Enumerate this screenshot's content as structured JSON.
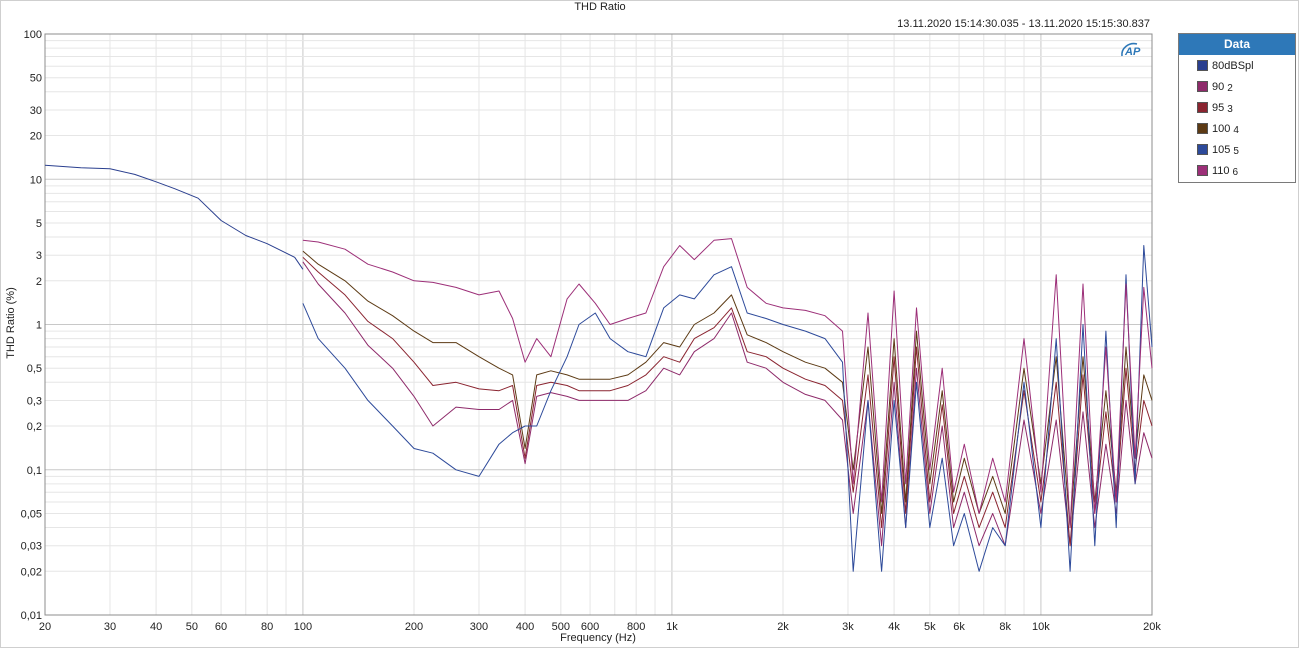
{
  "chart_data": {
    "type": "line",
    "title": "THD Ratio",
    "timestamp": "13.11.2020 15:14:30.035 - 13.11.2020 15:15:30.837",
    "xlabel": "Frequency (Hz)",
    "ylabel": "THD Ratio (%)",
    "x_scale": "log",
    "y_scale": "log",
    "xlim": [
      20,
      20000
    ],
    "ylim": [
      0.01,
      100
    ],
    "x_ticks": [
      20,
      30,
      40,
      50,
      60,
      80,
      100,
      200,
      300,
      400,
      500,
      600,
      800,
      1000,
      2000,
      3000,
      4000,
      5000,
      6000,
      8000,
      10000,
      20000
    ],
    "x_tick_labels": [
      "20",
      "30",
      "40",
      "50",
      "60",
      "80",
      "100",
      "200",
      "300",
      "400",
      "500",
      "600",
      "800",
      "1k",
      "2k",
      "3k",
      "4k",
      "5k",
      "6k",
      "8k",
      "10k",
      "20k"
    ],
    "y_ticks": [
      0.01,
      0.02,
      0.03,
      0.05,
      0.1,
      0.2,
      0.3,
      0.5,
      1,
      2,
      3,
      5,
      10,
      20,
      30,
      50,
      100
    ],
    "y_tick_labels": [
      "0,01",
      "0,02",
      "0,03",
      "0,05",
      "0,1",
      "0,2",
      "0,3",
      "0,5",
      "1",
      "2",
      "3",
      "5",
      "10",
      "20",
      "30",
      "50",
      "100"
    ],
    "grid": true,
    "legend": {
      "title": "Data",
      "position": "right",
      "entries": [
        {
          "label": "80dBSpl",
          "sub": "",
          "color": "#2a3f8f"
        },
        {
          "label": "90",
          "sub": "2",
          "color": "#8e2a6a"
        },
        {
          "label": "95",
          "sub": "3",
          "color": "#8a2430"
        },
        {
          "label": "100",
          "sub": "4",
          "color": "#5c3a14"
        },
        {
          "label": "105",
          "sub": "5",
          "color": "#2d4a9a"
        },
        {
          "label": "110",
          "sub": "6",
          "color": "#9c2f78"
        }
      ]
    },
    "series": [
      {
        "name": "80dBSpl",
        "color": "#2a3f8f",
        "x": [
          20,
          25,
          30,
          35,
          40,
          45,
          52,
          60,
          70,
          80,
          95,
          100
        ],
        "y": [
          12.5,
          12.0,
          11.8,
          10.8,
          9.6,
          8.6,
          7.4,
          5.2,
          4.1,
          3.6,
          2.9,
          2.4
        ]
      },
      {
        "name": "90",
        "color": "#8e2a6a",
        "x": [
          100,
          110,
          130,
          150,
          175,
          200,
          225,
          260,
          300,
          340,
          370,
          400,
          430,
          470,
          520,
          560,
          620,
          680,
          760,
          850,
          950,
          1050,
          1150,
          1300,
          1450,
          1600,
          1800,
          2000,
          2300,
          2600,
          2900,
          3100,
          3400,
          3700,
          4000,
          4300,
          4600,
          5000,
          5400,
          5800,
          6200,
          6800,
          7400,
          8000,
          9000,
          10000,
          11000,
          12000,
          13000,
          14000,
          15000,
          16000,
          17000,
          18000,
          19000,
          20000
        ],
        "y": [
          2.7,
          1.9,
          1.2,
          0.72,
          0.5,
          0.32,
          0.2,
          0.27,
          0.26,
          0.26,
          0.3,
          0.11,
          0.32,
          0.34,
          0.32,
          0.3,
          0.3,
          0.3,
          0.3,
          0.35,
          0.5,
          0.45,
          0.65,
          0.8,
          1.2,
          0.55,
          0.5,
          0.4,
          0.33,
          0.3,
          0.22,
          0.05,
          0.3,
          0.03,
          0.4,
          0.04,
          0.5,
          0.05,
          0.2,
          0.04,
          0.07,
          0.03,
          0.05,
          0.03,
          0.22,
          0.05,
          0.22,
          0.03,
          0.25,
          0.04,
          0.15,
          0.05,
          0.3,
          0.08,
          0.18,
          0.12
        ]
      },
      {
        "name": "95",
        "color": "#8a2430",
        "x": [
          100,
          110,
          130,
          150,
          175,
          200,
          225,
          260,
          300,
          340,
          370,
          400,
          430,
          470,
          520,
          560,
          620,
          680,
          760,
          850,
          950,
          1050,
          1150,
          1300,
          1450,
          1600,
          1800,
          2000,
          2300,
          2600,
          2900,
          3100,
          3400,
          3700,
          4000,
          4300,
          4600,
          5000,
          5400,
          5800,
          6200,
          6800,
          7400,
          8000,
          9000,
          10000,
          11000,
          12000,
          13000,
          14000,
          15000,
          16000,
          17000,
          18000,
          19000,
          20000
        ],
        "y": [
          2.9,
          2.3,
          1.6,
          1.05,
          0.8,
          0.55,
          0.38,
          0.4,
          0.36,
          0.35,
          0.38,
          0.12,
          0.38,
          0.4,
          0.38,
          0.35,
          0.35,
          0.35,
          0.38,
          0.45,
          0.6,
          0.55,
          0.8,
          0.95,
          1.3,
          0.65,
          0.6,
          0.5,
          0.42,
          0.38,
          0.3,
          0.07,
          0.45,
          0.04,
          0.6,
          0.05,
          0.7,
          0.06,
          0.28,
          0.05,
          0.09,
          0.04,
          0.07,
          0.04,
          0.35,
          0.06,
          0.4,
          0.03,
          0.45,
          0.05,
          0.25,
          0.06,
          0.5,
          0.1,
          0.3,
          0.2
        ]
      },
      {
        "name": "100",
        "color": "#5c3a14",
        "x": [
          100,
          110,
          130,
          150,
          175,
          200,
          225,
          260,
          300,
          340,
          370,
          400,
          430,
          470,
          520,
          560,
          620,
          680,
          760,
          850,
          950,
          1050,
          1150,
          1300,
          1450,
          1600,
          1800,
          2000,
          2300,
          2600,
          2900,
          3100,
          3400,
          3700,
          4000,
          4300,
          4600,
          5000,
          5400,
          5800,
          6200,
          6800,
          7400,
          8000,
          9000,
          10000,
          11000,
          12000,
          13000,
          14000,
          15000,
          16000,
          17000,
          18000,
          19000,
          20000
        ],
        "y": [
          3.2,
          2.6,
          2.0,
          1.45,
          1.15,
          0.9,
          0.75,
          0.75,
          0.6,
          0.5,
          0.45,
          0.14,
          0.45,
          0.48,
          0.45,
          0.42,
          0.42,
          0.42,
          0.45,
          0.55,
          0.75,
          0.7,
          1.0,
          1.2,
          1.6,
          0.85,
          0.75,
          0.65,
          0.55,
          0.5,
          0.4,
          0.1,
          0.7,
          0.05,
          0.8,
          0.06,
          0.9,
          0.08,
          0.35,
          0.06,
          0.12,
          0.05,
          0.09,
          0.05,
          0.5,
          0.08,
          0.6,
          0.04,
          0.6,
          0.06,
          0.35,
          0.07,
          0.7,
          0.12,
          0.45,
          0.3
        ]
      },
      {
        "name": "105",
        "color": "#2d4a9a",
        "x": [
          100,
          110,
          130,
          150,
          175,
          200,
          225,
          260,
          300,
          340,
          370,
          400,
          430,
          470,
          520,
          560,
          620,
          680,
          760,
          850,
          950,
          1050,
          1150,
          1300,
          1450,
          1600,
          1800,
          2000,
          2300,
          2600,
          2900,
          3100,
          3400,
          3700,
          4000,
          4300,
          4600,
          5000,
          5400,
          5800,
          6200,
          6800,
          7400,
          8000,
          9000,
          10000,
          11000,
          12000,
          13000,
          14000,
          15000,
          16000,
          17000,
          18000,
          19000,
          20000
        ],
        "y": [
          1.4,
          0.8,
          0.5,
          0.3,
          0.2,
          0.14,
          0.13,
          0.1,
          0.09,
          0.15,
          0.18,
          0.2,
          0.2,
          0.35,
          0.6,
          1.0,
          1.2,
          0.8,
          0.65,
          0.6,
          1.3,
          1.6,
          1.5,
          2.2,
          2.5,
          1.2,
          1.1,
          1.0,
          0.9,
          0.8,
          0.55,
          0.02,
          0.3,
          0.02,
          0.3,
          0.04,
          0.4,
          0.04,
          0.12,
          0.03,
          0.05,
          0.02,
          0.04,
          0.03,
          0.4,
          0.04,
          0.8,
          0.02,
          1.0,
          0.03,
          0.9,
          0.04,
          2.2,
          0.08,
          3.5,
          0.7
        ]
      },
      {
        "name": "110",
        "color": "#9c2f78",
        "x": [
          100,
          110,
          130,
          150,
          175,
          200,
          225,
          260,
          300,
          340,
          370,
          400,
          430,
          470,
          520,
          560,
          620,
          680,
          760,
          850,
          950,
          1050,
          1150,
          1300,
          1450,
          1600,
          1800,
          2000,
          2300,
          2600,
          2900,
          3100,
          3400,
          3700,
          4000,
          4300,
          4600,
          5000,
          5400,
          5800,
          6200,
          6800,
          7400,
          8000,
          9000,
          10000,
          11000,
          12000,
          13000,
          14000,
          15000,
          16000,
          17000,
          18000,
          19000,
          20000
        ],
        "y": [
          3.8,
          3.7,
          3.3,
          2.6,
          2.3,
          2.0,
          1.95,
          1.8,
          1.6,
          1.7,
          1.1,
          0.55,
          0.8,
          0.6,
          1.5,
          1.9,
          1.4,
          1.0,
          1.1,
          1.2,
          2.5,
          3.5,
          2.8,
          3.8,
          3.9,
          1.8,
          1.4,
          1.3,
          1.25,
          1.15,
          0.9,
          0.08,
          1.2,
          0.06,
          1.7,
          0.08,
          1.3,
          0.1,
          0.5,
          0.07,
          0.15,
          0.05,
          0.12,
          0.06,
          0.8,
          0.07,
          2.2,
          0.04,
          1.9,
          0.05,
          0.7,
          0.06,
          1.9,
          0.12,
          1.8,
          0.5
        ]
      }
    ]
  }
}
